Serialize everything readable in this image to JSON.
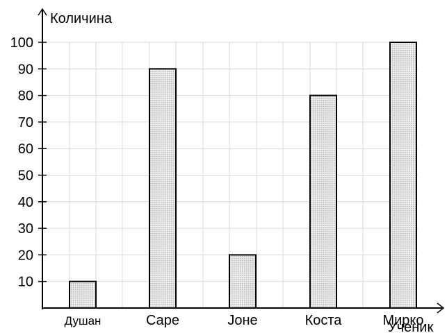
{
  "chart_data": {
    "type": "bar",
    "categories": [
      "Душан",
      "Саре",
      "Јоне",
      "Коста",
      "Мирко"
    ],
    "values": [
      10,
      90,
      20,
      80,
      100
    ],
    "title": "",
    "xlabel": "Ученик",
    "ylabel": "Количина",
    "ylim": [
      0,
      100
    ],
    "yticks": [
      10,
      20,
      30,
      40,
      50,
      60,
      70,
      80,
      90,
      100
    ],
    "grid": true,
    "bar_fill": "#d8d8d8",
    "bar_stroke": "#000000"
  }
}
